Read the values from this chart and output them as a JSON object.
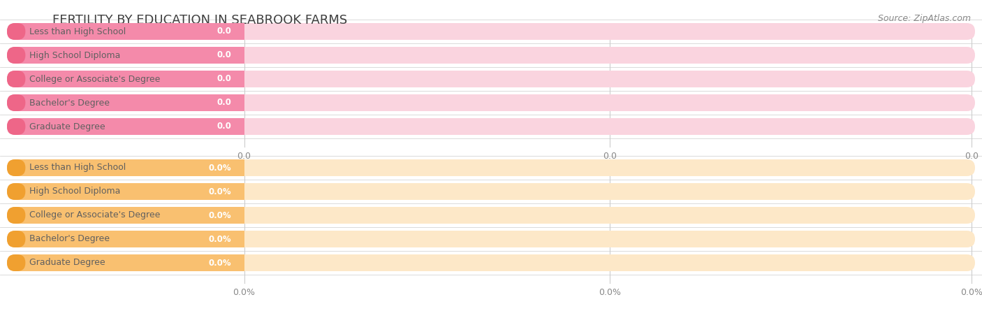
{
  "title": "FERTILITY BY EDUCATION IN SEABROOK FARMS",
  "source": "Source: ZipAtlas.com",
  "top_categories": [
    "Less than High School",
    "High School Diploma",
    "College or Associate's Degree",
    "Bachelor's Degree",
    "Graduate Degree"
  ],
  "bottom_categories": [
    "Less than High School",
    "High School Diploma",
    "College or Associate's Degree",
    "Bachelor's Degree",
    "Graduate Degree"
  ],
  "top_values": [
    0.0,
    0.0,
    0.0,
    0.0,
    0.0
  ],
  "bottom_values": [
    0.0,
    0.0,
    0.0,
    0.0,
    0.0
  ],
  "top_bar_bg_color": "#FAD4DF",
  "top_colored_color": "#F48AAA",
  "top_cap_color": "#EE6688",
  "top_value_color": "#FFFFFF",
  "bottom_bar_bg_color": "#FDE8C8",
  "bottom_colored_color": "#F9C070",
  "bottom_cap_color": "#F0A030",
  "bottom_value_color": "#FFFFFF",
  "label_color": "#606060",
  "background_color": "#FFFFFF",
  "row_bg_color": "#F0F0F0",
  "grid_color": "#CCCCCC",
  "title_color": "#404040",
  "tick_label_color": "#888888",
  "source_color": "#888888"
}
